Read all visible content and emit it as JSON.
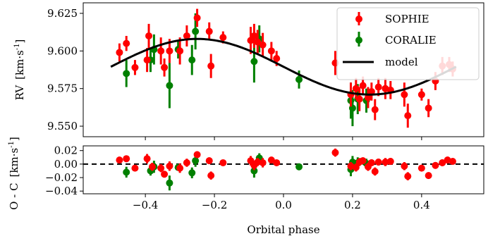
{
  "chart_data": [
    {
      "type": "scatter",
      "ylabel_text": "RV",
      "ylabel_units": "[km·s",
      "ylabel_exp": "-1",
      "ylabel_close": "]",
      "xlim": [
        -0.58,
        0.58
      ],
      "ylim": [
        9.543,
        9.632
      ],
      "yticks": [
        9.55,
        9.575,
        9.6,
        9.625
      ],
      "ytick_labels": [
        "9.550",
        "9.575",
        "9.600",
        "9.625"
      ],
      "legend": {
        "position": "top-right",
        "entries": [
          "SOPHIE",
          "CORALIE",
          "model"
        ]
      },
      "model": {
        "name": "model",
        "color": "#000000",
        "mean": 9.5895,
        "amplitude": 0.0185,
        "phase_of_max": -0.25,
        "x_range": [
          -0.5,
          0.5
        ]
      },
      "series": [
        {
          "name": "SOPHIE",
          "color": "#ff0000",
          "points": [
            {
              "x": -0.475,
              "y": 9.599,
              "err": 0.006
            },
            {
              "x": -0.455,
              "y": 9.605,
              "err": 0.005
            },
            {
              "x": -0.43,
              "y": 9.589,
              "err": 0.005
            },
            {
              "x": -0.395,
              "y": 9.594,
              "err": 0.008
            },
            {
              "x": -0.39,
              "y": 9.61,
              "err": 0.008
            },
            {
              "x": -0.355,
              "y": 9.6,
              "err": 0.009
            },
            {
              "x": -0.345,
              "y": 9.589,
              "err": 0.006
            },
            {
              "x": -0.33,
              "y": 9.6,
              "err": 0.008
            },
            {
              "x": -0.3,
              "y": 9.6,
              "err": 0.009
            },
            {
              "x": -0.28,
              "y": 9.61,
              "err": 0.007
            },
            {
              "x": -0.25,
              "y": 9.622,
              "err": 0.006
            },
            {
              "x": -0.215,
              "y": 9.613,
              "err": 0.006
            },
            {
              "x": -0.21,
              "y": 9.59,
              "err": 0.008
            },
            {
              "x": -0.175,
              "y": 9.609,
              "err": 0.004
            },
            {
              "x": -0.095,
              "y": 9.607,
              "err": 0.009
            },
            {
              "x": -0.085,
              "y": 9.61,
              "err": 0.008
            },
            {
              "x": -0.075,
              "y": 9.606,
              "err": 0.008
            },
            {
              "x": -0.06,
              "y": 9.604,
              "err": 0.008
            },
            {
              "x": -0.035,
              "y": 9.6,
              "err": 0.006
            },
            {
              "x": -0.02,
              "y": 9.595,
              "err": 0.005
            },
            {
              "x": 0.15,
              "y": 9.592,
              "err": 0.008
            },
            {
              "x": 0.195,
              "y": 9.571,
              "err": 0.008
            },
            {
              "x": 0.21,
              "y": 9.575,
              "err": 0.007
            },
            {
              "x": 0.22,
              "y": 9.568,
              "err": 0.008
            },
            {
              "x": 0.23,
              "y": 9.577,
              "err": 0.006
            },
            {
              "x": 0.245,
              "y": 9.569,
              "err": 0.007
            },
            {
              "x": 0.255,
              "y": 9.573,
              "err": 0.006
            },
            {
              "x": 0.265,
              "y": 9.561,
              "err": 0.007
            },
            {
              "x": 0.275,
              "y": 9.576,
              "err": 0.006
            },
            {
              "x": 0.295,
              "y": 9.575,
              "err": 0.007
            },
            {
              "x": 0.31,
              "y": 9.574,
              "err": 0.006
            },
            {
              "x": 0.35,
              "y": 9.571,
              "err": 0.008
            },
            {
              "x": 0.36,
              "y": 9.557,
              "err": 0.008
            },
            {
              "x": 0.4,
              "y": 9.571,
              "err": 0.004
            },
            {
              "x": 0.42,
              "y": 9.562,
              "err": 0.006
            },
            {
              "x": 0.44,
              "y": 9.58,
              "err": 0.006
            },
            {
              "x": 0.46,
              "y": 9.59,
              "err": 0.006
            },
            {
              "x": 0.48,
              "y": 9.591,
              "err": 0.005
            },
            {
              "x": 0.49,
              "y": 9.588,
              "err": 0.005
            }
          ]
        },
        {
          "name": "CORALIE",
          "color": "#008000",
          "points": [
            {
              "x": -0.455,
              "y": 9.585,
              "err": 0.009
            },
            {
              "x": -0.385,
              "y": 9.594,
              "err": 0.008
            },
            {
              "x": -0.375,
              "y": 9.601,
              "err": 0.01
            },
            {
              "x": -0.33,
              "y": 9.577,
              "err": 0.015
            },
            {
              "x": -0.305,
              "y": 9.601,
              "err": 0.006
            },
            {
              "x": -0.265,
              "y": 9.594,
              "err": 0.01
            },
            {
              "x": -0.255,
              "y": 9.613,
              "err": 0.012
            },
            {
              "x": -0.085,
              "y": 9.593,
              "err": 0.014
            },
            {
              "x": -0.07,
              "y": 9.608,
              "err": 0.009
            },
            {
              "x": 0.045,
              "y": 9.581,
              "err": 0.006
            },
            {
              "x": 0.195,
              "y": 9.567,
              "err": 0.012
            },
            {
              "x": 0.2,
              "y": 9.562,
              "err": 0.012
            },
            {
              "x": 0.215,
              "y": 9.568,
              "err": 0.01
            },
            {
              "x": 0.24,
              "y": 9.567,
              "err": 0.008
            }
          ]
        }
      ]
    },
    {
      "type": "scatter",
      "ylabel_text": "O - C",
      "ylabel_units": "[km·s",
      "ylabel_exp": "-1",
      "ylabel_close": "]",
      "xlabel": "Orbital phase",
      "xlim": [
        -0.58,
        0.58
      ],
      "ylim": [
        -0.044,
        0.027
      ],
      "yticks": [
        -0.04,
        -0.02,
        0.0,
        0.02
      ],
      "ytick_labels": [
        "−0.04",
        "−0.02",
        "0.00",
        "0.02"
      ],
      "xticks": [
        -0.4,
        -0.2,
        0.0,
        0.2,
        0.4
      ],
      "xtick_labels": [
        "−0.4",
        "−0.2",
        "0.0",
        "0.2",
        "0.4"
      ],
      "zero_line": "dashed",
      "series": [
        {
          "name": "SOPHIE",
          "color": "#ff0000",
          "points": [
            {
              "x": -0.475,
              "y": 0.006,
              "err": 0.005
            },
            {
              "x": -0.455,
              "y": 0.008,
              "err": 0.004
            },
            {
              "x": -0.43,
              "y": -0.006,
              "err": 0.004
            },
            {
              "x": -0.395,
              "y": 0.008,
              "err": 0.007
            },
            {
              "x": -0.38,
              "y": -0.004,
              "err": 0.006
            },
            {
              "x": -0.355,
              "y": -0.006,
              "err": 0.006
            },
            {
              "x": -0.345,
              "y": -0.015,
              "err": 0.005
            },
            {
              "x": -0.33,
              "y": -0.003,
              "err": 0.007
            },
            {
              "x": -0.3,
              "y": -0.006,
              "err": 0.007
            },
            {
              "x": -0.28,
              "y": 0.002,
              "err": 0.006
            },
            {
              "x": -0.25,
              "y": 0.014,
              "err": 0.005
            },
            {
              "x": -0.215,
              "y": 0.005,
              "err": 0.005
            },
            {
              "x": -0.21,
              "y": -0.017,
              "err": 0.006
            },
            {
              "x": -0.175,
              "y": 0.002,
              "err": 0.004
            },
            {
              "x": -0.095,
              "y": 0.005,
              "err": 0.007
            },
            {
              "x": -0.085,
              "y": -0.002,
              "err": 0.007
            },
            {
              "x": -0.075,
              "y": 0.003,
              "err": 0.006
            },
            {
              "x": -0.06,
              "y": 0.002,
              "err": 0.007
            },
            {
              "x": -0.035,
              "y": 0.006,
              "err": 0.005
            },
            {
              "x": -0.02,
              "y": 0.002,
              "err": 0.004
            },
            {
              "x": 0.15,
              "y": 0.017,
              "err": 0.006
            },
            {
              "x": 0.195,
              "y": -0.003,
              "err": 0.006
            },
            {
              "x": 0.21,
              "y": -0.005,
              "err": 0.006
            },
            {
              "x": 0.22,
              "y": 0.003,
              "err": 0.006
            },
            {
              "x": 0.23,
              "y": 0.005,
              "err": 0.005
            },
            {
              "x": 0.245,
              "y": -0.004,
              "err": 0.006
            },
            {
              "x": 0.255,
              "y": 0.002,
              "err": 0.005
            },
            {
              "x": 0.265,
              "y": -0.011,
              "err": 0.006
            },
            {
              "x": 0.275,
              "y": 0.003,
              "err": 0.005
            },
            {
              "x": 0.295,
              "y": 0.003,
              "err": 0.006
            },
            {
              "x": 0.31,
              "y": 0.004,
              "err": 0.005
            },
            {
              "x": 0.35,
              "y": -0.003,
              "err": 0.006
            },
            {
              "x": 0.36,
              "y": -0.018,
              "err": 0.006
            },
            {
              "x": 0.4,
              "y": -0.006,
              "err": 0.004
            },
            {
              "x": 0.42,
              "y": -0.017,
              "err": 0.005
            },
            {
              "x": 0.44,
              "y": -0.002,
              "err": 0.005
            },
            {
              "x": 0.46,
              "y": 0.002,
              "err": 0.005
            },
            {
              "x": 0.475,
              "y": 0.006,
              "err": 0.005
            },
            {
              "x": 0.49,
              "y": 0.004,
              "err": 0.004
            }
          ]
        },
        {
          "name": "CORALIE",
          "color": "#008000",
          "points": [
            {
              "x": -0.455,
              "y": -0.012,
              "err": 0.008
            },
            {
              "x": -0.385,
              "y": -0.01,
              "err": 0.007
            },
            {
              "x": -0.375,
              "y": -0.004,
              "err": 0.009
            },
            {
              "x": -0.33,
              "y": -0.028,
              "err": 0.011
            },
            {
              "x": -0.305,
              "y": -0.005,
              "err": 0.005
            },
            {
              "x": -0.265,
              "y": -0.013,
              "err": 0.008
            },
            {
              "x": -0.255,
              "y": 0.005,
              "err": 0.009
            },
            {
              "x": -0.085,
              "y": -0.01,
              "err": 0.01
            },
            {
              "x": -0.07,
              "y": 0.009,
              "err": 0.007
            },
            {
              "x": 0.045,
              "y": -0.004,
              "err": 0.005
            },
            {
              "x": 0.195,
              "y": -0.008,
              "err": 0.01
            },
            {
              "x": 0.2,
              "y": 0.003,
              "err": 0.009
            },
            {
              "x": 0.215,
              "y": 0.002,
              "err": 0.008
            },
            {
              "x": 0.24,
              "y": 0.001,
              "err": 0.007
            }
          ]
        }
      ]
    }
  ]
}
